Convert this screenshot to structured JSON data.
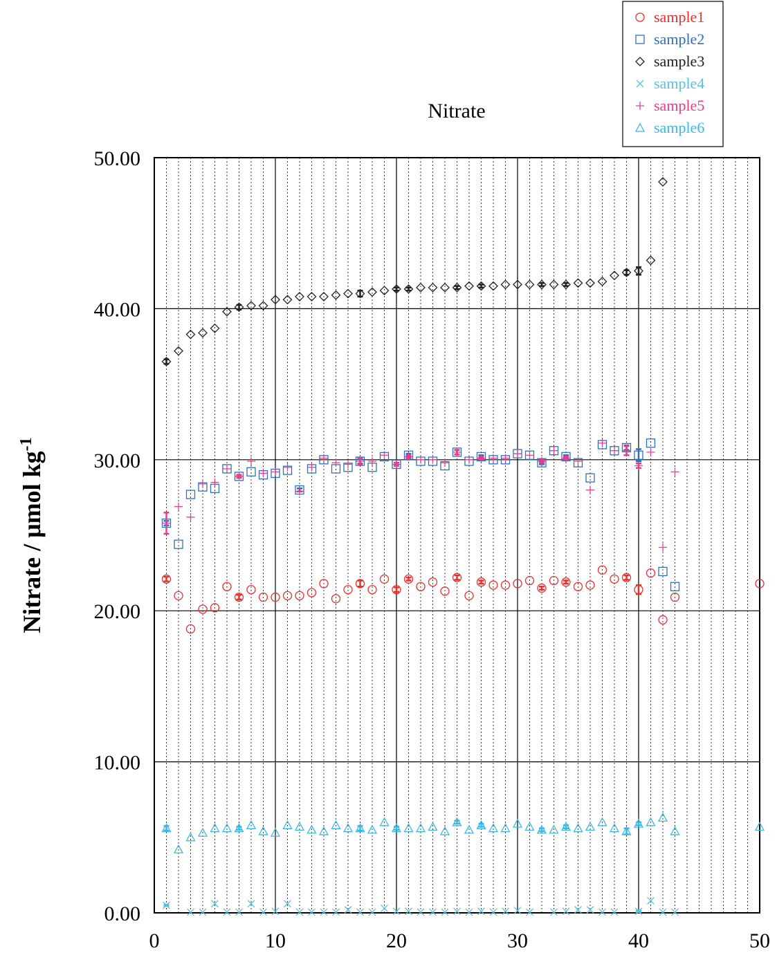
{
  "chart_data": {
    "type": "scatter",
    "title": "Nitrate",
    "xlabel": "",
    "ylabel": "Nitrate / μmol kg",
    "ylabel_superscript": "-1",
    "xlim": [
      0,
      50
    ],
    "ylim": [
      0,
      50
    ],
    "x_ticks": [
      "0",
      "10",
      "20",
      "30",
      "40",
      "50"
    ],
    "y_ticks": [
      "0.00",
      "10.00",
      "20.00",
      "30.00",
      "40.00",
      "50.00"
    ],
    "grid": {
      "major": true,
      "minor_x": "dotted"
    },
    "legend_position": "top-right",
    "series": [
      {
        "name": "sample1",
        "marker": "circle",
        "color": "#e8302f",
        "x": [
          1,
          2,
          3,
          4,
          5,
          6,
          7,
          8,
          9,
          10,
          11,
          12,
          13,
          14,
          15,
          16,
          17,
          18,
          19,
          20,
          21,
          22,
          23,
          24,
          25,
          26,
          27,
          28,
          29,
          30,
          31,
          32,
          33,
          34,
          35,
          36,
          37,
          38,
          39,
          40,
          41,
          42,
          43,
          50
        ],
        "y": [
          22.1,
          21.0,
          18.8,
          20.1,
          20.2,
          21.6,
          20.9,
          21.4,
          20.9,
          20.9,
          21.0,
          21.0,
          21.2,
          21.8,
          20.8,
          21.4,
          21.8,
          21.4,
          22.1,
          21.4,
          22.1,
          21.6,
          21.9,
          21.3,
          22.2,
          21.0,
          21.9,
          21.7,
          21.7,
          21.8,
          22.0,
          21.5,
          22.0,
          21.9,
          21.6,
          21.7,
          22.7,
          22.1,
          22.2,
          21.4,
          22.5,
          19.4,
          20.9,
          21.8
        ],
        "error": [
          0.15,
          0,
          0,
          0,
          0,
          0,
          0.15,
          0,
          0,
          0,
          0,
          0,
          0,
          0,
          0,
          0,
          0.2,
          0,
          0,
          0.15,
          0.1,
          0,
          0,
          0,
          0.15,
          0,
          0.1,
          0,
          0,
          0,
          0,
          0.1,
          0,
          0.1,
          0,
          0,
          0,
          0,
          0.15,
          0.3,
          0,
          0,
          0,
          0
        ]
      },
      {
        "name": "sample2",
        "marker": "square",
        "color": "#2f6fb9",
        "x": [
          1,
          2,
          3,
          4,
          5,
          6,
          7,
          8,
          9,
          10,
          11,
          12,
          13,
          14,
          15,
          16,
          17,
          18,
          19,
          20,
          21,
          22,
          23,
          24,
          25,
          26,
          27,
          28,
          29,
          30,
          31,
          32,
          33,
          34,
          35,
          36,
          37,
          38,
          39,
          40,
          41,
          42,
          43
        ],
        "y": [
          25.8,
          24.4,
          27.7,
          28.2,
          28.1,
          29.4,
          28.9,
          29.2,
          29.0,
          29.1,
          29.3,
          28.0,
          29.4,
          30.0,
          29.4,
          29.5,
          29.9,
          29.5,
          30.2,
          29.7,
          30.3,
          29.9,
          29.9,
          29.6,
          30.5,
          29.9,
          30.2,
          30.0,
          30.0,
          30.4,
          30.3,
          29.8,
          30.6,
          30.2,
          29.8,
          28.8,
          31.0,
          30.6,
          30.8,
          30.3,
          31.1,
          22.6,
          21.6
        ],
        "error": [
          0.15,
          0,
          0,
          0,
          0,
          0,
          0.1,
          0,
          0,
          0,
          0,
          0.1,
          0,
          0,
          0,
          0,
          0.15,
          0,
          0,
          0.1,
          0.1,
          0,
          0,
          0,
          0.15,
          0,
          0.1,
          0,
          0,
          0,
          0,
          0.1,
          0,
          0.1,
          0,
          0,
          0,
          0,
          0.15,
          0.4,
          0,
          0,
          0
        ]
      },
      {
        "name": "sample3",
        "marker": "diamond",
        "color": "#222222",
        "x": [
          1,
          2,
          3,
          4,
          5,
          6,
          7,
          8,
          9,
          10,
          11,
          12,
          13,
          14,
          15,
          16,
          17,
          18,
          19,
          20,
          21,
          22,
          23,
          24,
          25,
          26,
          27,
          28,
          29,
          30,
          31,
          32,
          33,
          34,
          35,
          36,
          37,
          38,
          39,
          40,
          41,
          42
        ],
        "y": [
          36.5,
          37.2,
          38.3,
          38.4,
          38.7,
          39.8,
          40.1,
          40.2,
          40.2,
          40.6,
          40.6,
          40.8,
          40.8,
          40.8,
          40.9,
          41.0,
          41.0,
          41.1,
          41.2,
          41.3,
          41.3,
          41.4,
          41.4,
          41.4,
          41.4,
          41.5,
          41.5,
          41.5,
          41.6,
          41.6,
          41.6,
          41.6,
          41.6,
          41.6,
          41.7,
          41.7,
          41.8,
          42.2,
          42.4,
          42.5,
          43.2,
          48.4
        ],
        "error": [
          0.15,
          0,
          0,
          0,
          0,
          0,
          0.15,
          0,
          0,
          0,
          0,
          0,
          0,
          0,
          0,
          0,
          0.2,
          0,
          0,
          0.1,
          0.1,
          0,
          0,
          0,
          0.1,
          0,
          0.1,
          0,
          0,
          0,
          0,
          0.1,
          0,
          0.1,
          0,
          0,
          0,
          0,
          0.15,
          0.25,
          0,
          0
        ]
      },
      {
        "name": "sample4",
        "marker": "x",
        "color": "#5bc0de",
        "x": [
          1,
          3,
          4,
          5,
          6,
          7,
          8,
          9,
          10,
          11,
          12,
          13,
          14,
          15,
          16,
          17,
          18,
          19,
          20,
          21,
          22,
          23,
          24,
          25,
          26,
          27,
          28,
          29,
          30,
          31,
          33,
          34,
          35,
          36,
          37,
          38,
          40,
          41,
          42,
          43
        ],
        "y": [
          0.5,
          0.05,
          0.05,
          0.6,
          0.05,
          0.05,
          0.6,
          0.05,
          0.1,
          0.6,
          0.05,
          0.05,
          0.05,
          0.05,
          0.2,
          0.05,
          0.05,
          0.3,
          0.1,
          0.1,
          0.05,
          0.05,
          0.05,
          0.1,
          0.05,
          0.1,
          0.05,
          0.1,
          0.15,
          0.05,
          0.05,
          0.1,
          0.2,
          0.2,
          0.05,
          0.05,
          0.1,
          0.8,
          0.05,
          0.05
        ],
        "error": [
          0.05,
          0,
          0,
          0,
          0,
          0,
          0,
          0,
          0,
          0,
          0,
          0,
          0,
          0,
          0,
          0,
          0,
          0,
          0,
          0,
          0,
          0,
          0,
          0,
          0,
          0,
          0,
          0,
          0,
          0,
          0,
          0,
          0,
          0,
          0,
          0,
          0.05,
          0,
          0,
          0
        ]
      },
      {
        "name": "sample5",
        "marker": "plus",
        "color": "#e83c8c",
        "x": [
          1,
          2,
          3,
          4,
          5,
          6,
          7,
          8,
          9,
          10,
          11,
          12,
          13,
          14,
          15,
          16,
          17,
          18,
          19,
          20,
          21,
          22,
          23,
          24,
          25,
          26,
          27,
          28,
          29,
          30,
          31,
          32,
          33,
          34,
          35,
          36,
          37,
          38,
          39,
          40,
          41,
          42,
          43
        ],
        "y": [
          25.8,
          26.9,
          26.2,
          28.4,
          28.5,
          29.4,
          28.9,
          29.9,
          29.1,
          29.2,
          29.5,
          27.9,
          29.5,
          30.1,
          29.8,
          29.7,
          29.9,
          29.9,
          30.3,
          29.7,
          30.2,
          30.0,
          30.0,
          29.8,
          30.5,
          30.0,
          30.1,
          30.1,
          30.1,
          30.4,
          30.3,
          29.9,
          30.6,
          30.1,
          29.9,
          28.0,
          31.1,
          30.6,
          30.6,
          29.6,
          30.5,
          24.2,
          29.2
        ],
        "error": [
          0.7,
          0,
          0,
          0,
          0,
          0,
          0.1,
          0,
          0,
          0,
          0,
          0,
          0,
          0,
          0,
          0,
          0.2,
          0,
          0,
          0.1,
          0.1,
          0,
          0,
          0,
          0.15,
          0,
          0.1,
          0,
          0,
          0,
          0,
          0.1,
          0,
          0.1,
          0,
          0,
          0,
          0,
          0.3,
          0.15,
          0,
          0,
          0
        ]
      },
      {
        "name": "sample6",
        "marker": "triangle",
        "color": "#3bb9e3",
        "x": [
          1,
          2,
          3,
          4,
          5,
          6,
          7,
          8,
          9,
          10,
          11,
          12,
          13,
          14,
          15,
          16,
          17,
          18,
          19,
          20,
          21,
          22,
          23,
          24,
          25,
          26,
          27,
          28,
          29,
          30,
          31,
          32,
          33,
          34,
          35,
          36,
          37,
          38,
          39,
          40,
          41,
          42,
          43,
          50
        ],
        "y": [
          5.6,
          4.2,
          5.0,
          5.3,
          5.6,
          5.6,
          5.6,
          5.8,
          5.4,
          5.3,
          5.8,
          5.7,
          5.5,
          5.4,
          5.8,
          5.6,
          5.6,
          5.5,
          6.0,
          5.6,
          5.6,
          5.6,
          5.7,
          5.4,
          6.0,
          5.5,
          5.8,
          5.6,
          5.6,
          5.9,
          5.7,
          5.5,
          5.5,
          5.7,
          5.6,
          5.7,
          6.0,
          5.6,
          5.4,
          5.9,
          6.0,
          6.3,
          5.4,
          5.7
        ],
        "error": [
          0.15,
          0,
          0,
          0,
          0,
          0,
          0.1,
          0,
          0,
          0,
          0,
          0,
          0,
          0,
          0,
          0,
          0.15,
          0,
          0,
          0.1,
          0,
          0,
          0,
          0,
          0.1,
          0,
          0.1,
          0,
          0,
          0,
          0,
          0.1,
          0,
          0.1,
          0,
          0,
          0,
          0,
          0.2,
          0.1,
          0,
          0,
          0,
          0
        ]
      }
    ]
  }
}
